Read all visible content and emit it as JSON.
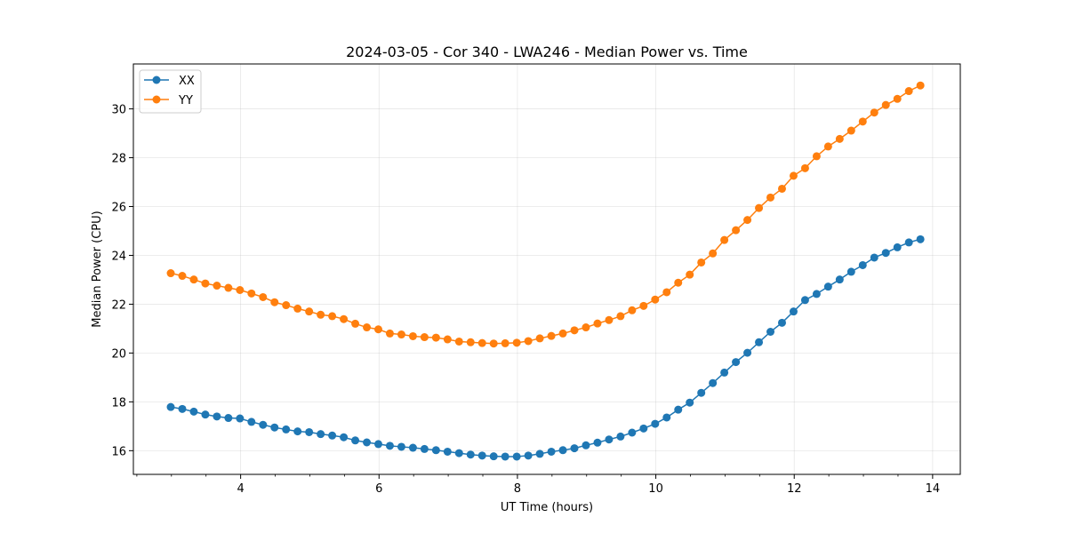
{
  "chart_data": {
    "type": "line",
    "title": "2024-03-05 - Cor 340 - LWA246 - Median Power vs. Time",
    "xlabel": "UT Time (hours)",
    "ylabel": "Median Power (CPU)",
    "xlim": [
      2.45,
      14.4
    ],
    "ylim": [
      15.03,
      31.84
    ],
    "xticks": [
      4,
      6,
      8,
      10,
      12,
      14
    ],
    "xtick_labels": [
      "4",
      "6",
      "8",
      "10",
      "12",
      "14"
    ],
    "x_minor_step": 0.5,
    "yticks": [
      16,
      18,
      20,
      22,
      24,
      26,
      28,
      30
    ],
    "ytick_labels": [
      "16",
      "18",
      "20",
      "22",
      "24",
      "26",
      "28",
      "30"
    ],
    "grid": true,
    "legend_position": "top-left",
    "x_start": 2.99,
    "x_step": 0.16667,
    "series": [
      {
        "name": "XX",
        "color": "#1f77b4",
        "values": [
          17.79,
          17.71,
          17.6,
          17.48,
          17.4,
          17.34,
          17.32,
          17.18,
          17.06,
          16.95,
          16.87,
          16.79,
          16.76,
          16.68,
          16.62,
          16.55,
          16.42,
          16.34,
          16.27,
          16.2,
          16.16,
          16.12,
          16.07,
          16.02,
          15.96,
          15.9,
          15.84,
          15.8,
          15.77,
          15.76,
          15.76,
          15.8,
          15.87,
          15.96,
          16.02,
          16.1,
          16.22,
          16.33,
          16.46,
          16.58,
          16.74,
          16.91,
          17.1,
          17.36,
          17.68,
          17.97,
          18.37,
          18.77,
          19.2,
          19.63,
          20.01,
          20.44,
          20.87,
          21.24,
          21.7,
          22.17,
          22.42,
          22.72,
          23.01,
          23.33,
          23.6,
          23.91,
          24.1,
          24.33,
          24.53,
          24.66
        ]
      },
      {
        "name": "YY",
        "color": "#ff7f0e",
        "values": [
          23.27,
          23.16,
          23.01,
          22.85,
          22.76,
          22.67,
          22.58,
          22.44,
          22.29,
          22.08,
          21.96,
          21.82,
          21.7,
          21.57,
          21.51,
          21.39,
          21.2,
          21.05,
          20.97,
          20.8,
          20.76,
          20.69,
          20.65,
          20.63,
          20.56,
          20.47,
          20.44,
          20.41,
          20.39,
          20.4,
          20.42,
          20.49,
          20.6,
          20.7,
          20.8,
          20.93,
          21.05,
          21.21,
          21.35,
          21.51,
          21.75,
          21.93,
          22.19,
          22.49,
          22.88,
          23.21,
          23.71,
          24.08,
          24.63,
          25.03,
          25.45,
          25.94,
          26.37,
          26.73,
          27.26,
          27.57,
          28.06,
          28.46,
          28.77,
          29.11,
          29.48,
          29.85,
          30.16,
          30.41,
          30.73,
          30.96
        ]
      }
    ]
  }
}
